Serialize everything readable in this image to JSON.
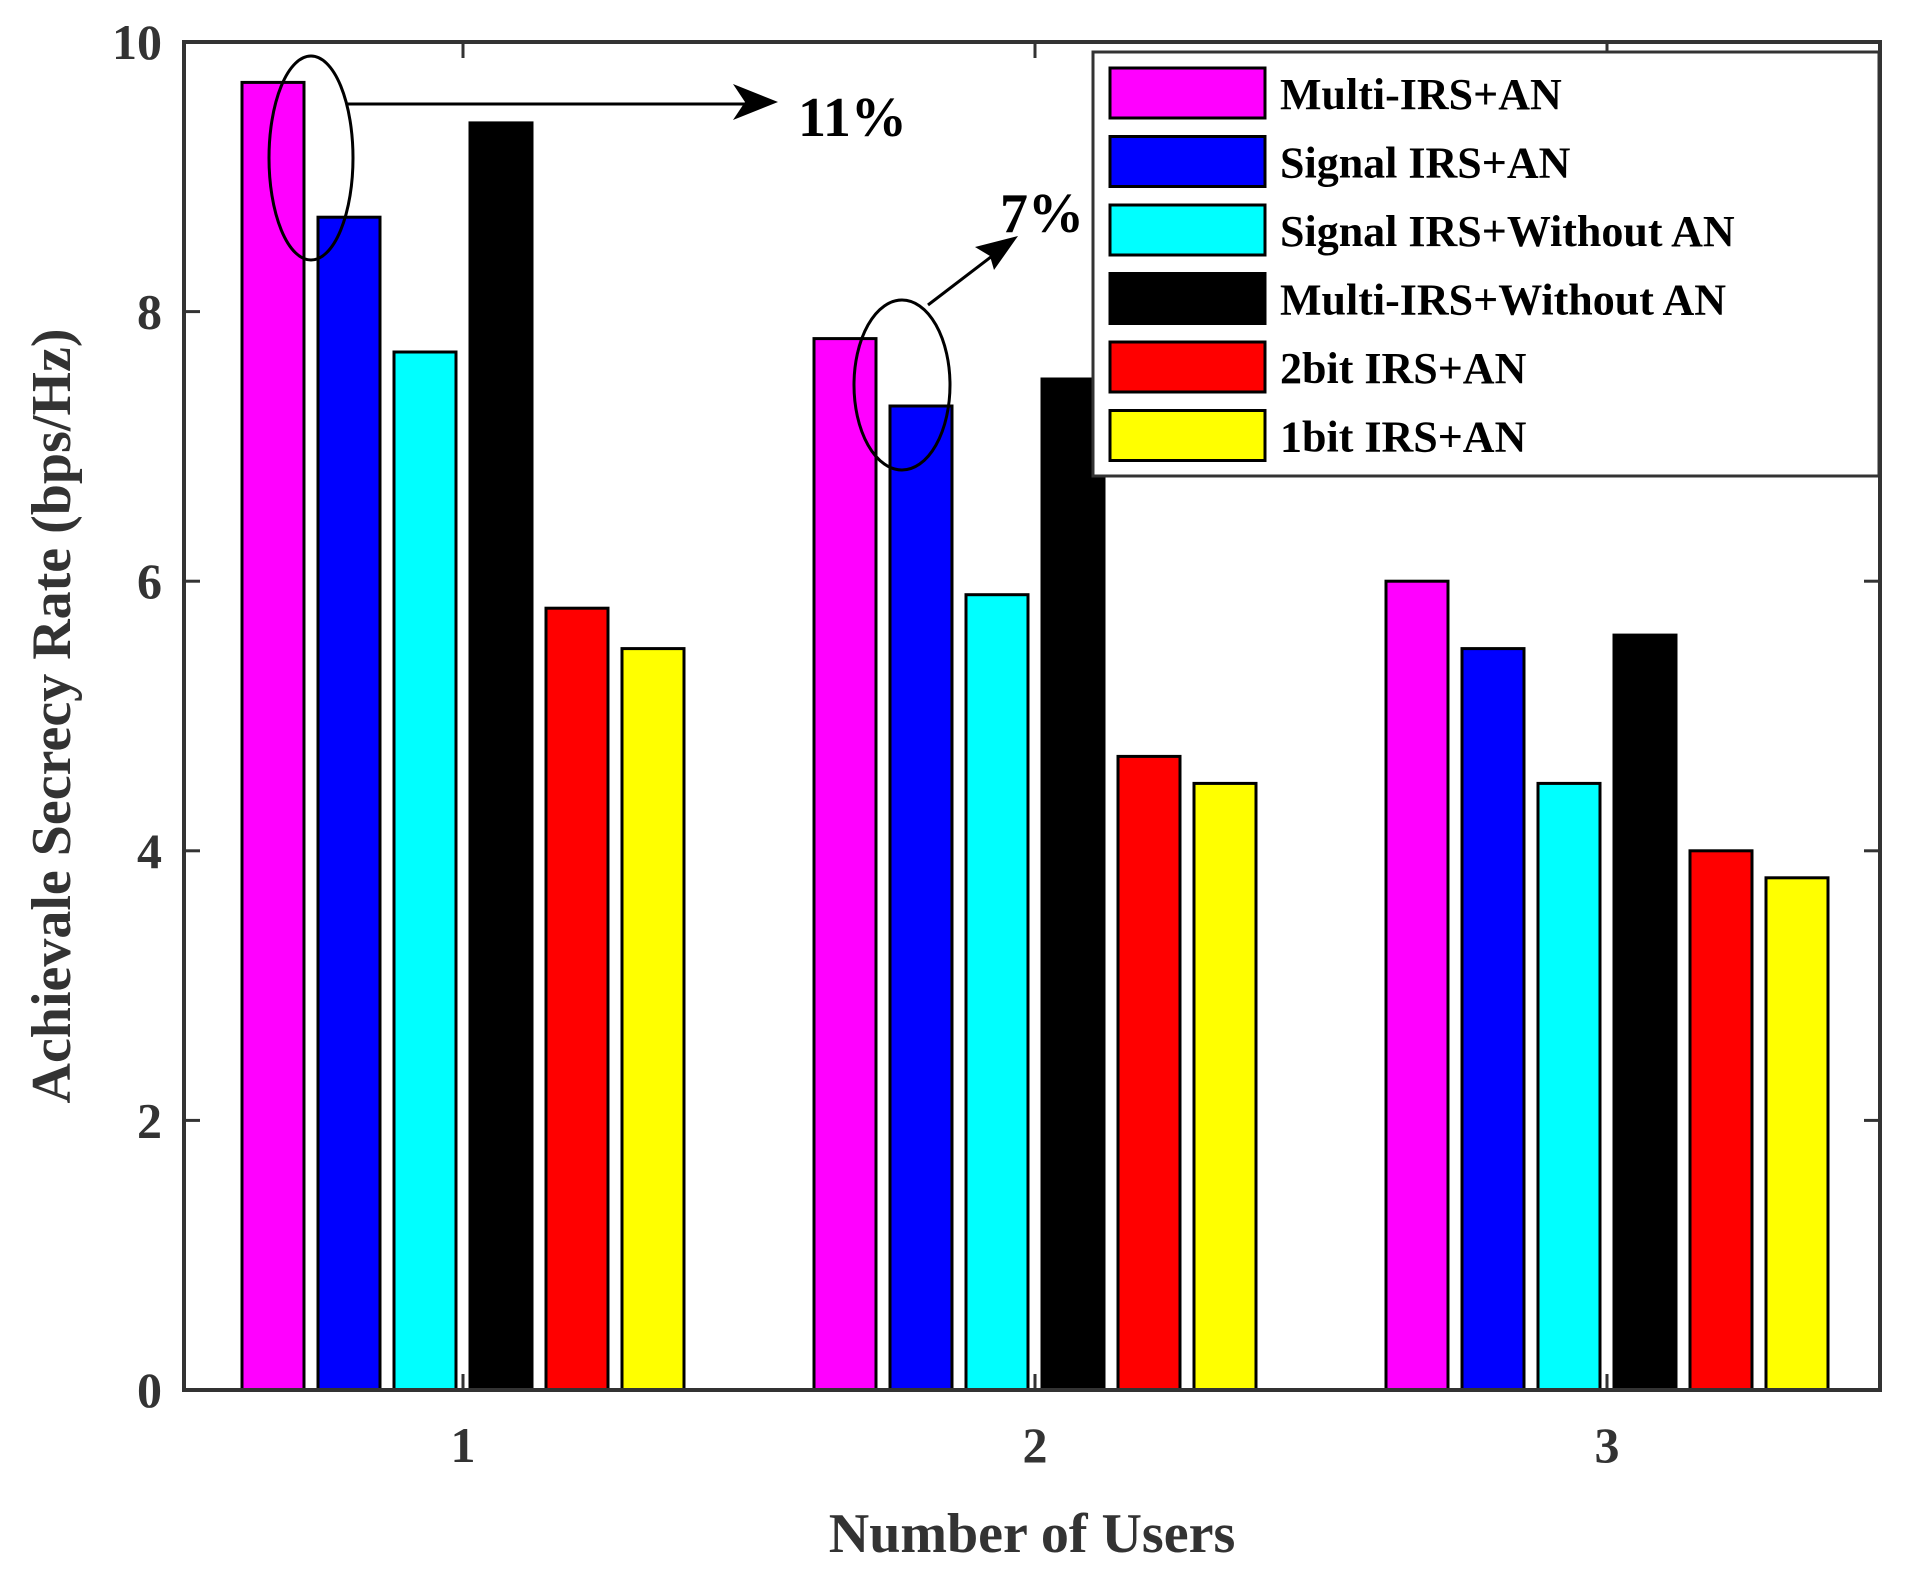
{
  "chart_data": {
    "type": "bar",
    "title": "",
    "xlabel": "Number of Users",
    "ylabel": "Achievale Secrecy Rate (bps/Hz)",
    "categories": [
      "1",
      "2",
      "3"
    ],
    "ylim": [
      0,
      10
    ],
    "yticks": [
      0,
      2,
      4,
      6,
      8,
      10
    ],
    "legend_position": "top-right",
    "grid": false,
    "series": [
      {
        "name": "Multi-IRS+AN",
        "color": "#ff00ff",
        "values": [
          9.7,
          7.8,
          6.0
        ]
      },
      {
        "name": "Signal IRS+AN",
        "color": "#0000ff",
        "values": [
          8.7,
          7.3,
          5.5
        ]
      },
      {
        "name": "Signal IRS+Without AN",
        "color": "#00ffff",
        "values": [
          7.7,
          5.9,
          4.5
        ]
      },
      {
        "name": "Multi-IRS+Without AN",
        "color": "#000000",
        "values": [
          9.4,
          7.5,
          5.6
        ]
      },
      {
        "name": "2bit IRS+AN",
        "color": "#ff0000",
        "values": [
          5.8,
          4.7,
          4.0
        ]
      },
      {
        "name": "1bit IRS+AN",
        "color": "#ffff00",
        "values": [
          5.5,
          4.5,
          3.8
        ]
      }
    ],
    "annotations": [
      {
        "text": "11%",
        "category": "1"
      },
      {
        "text": "7%",
        "category": "2"
      }
    ]
  }
}
